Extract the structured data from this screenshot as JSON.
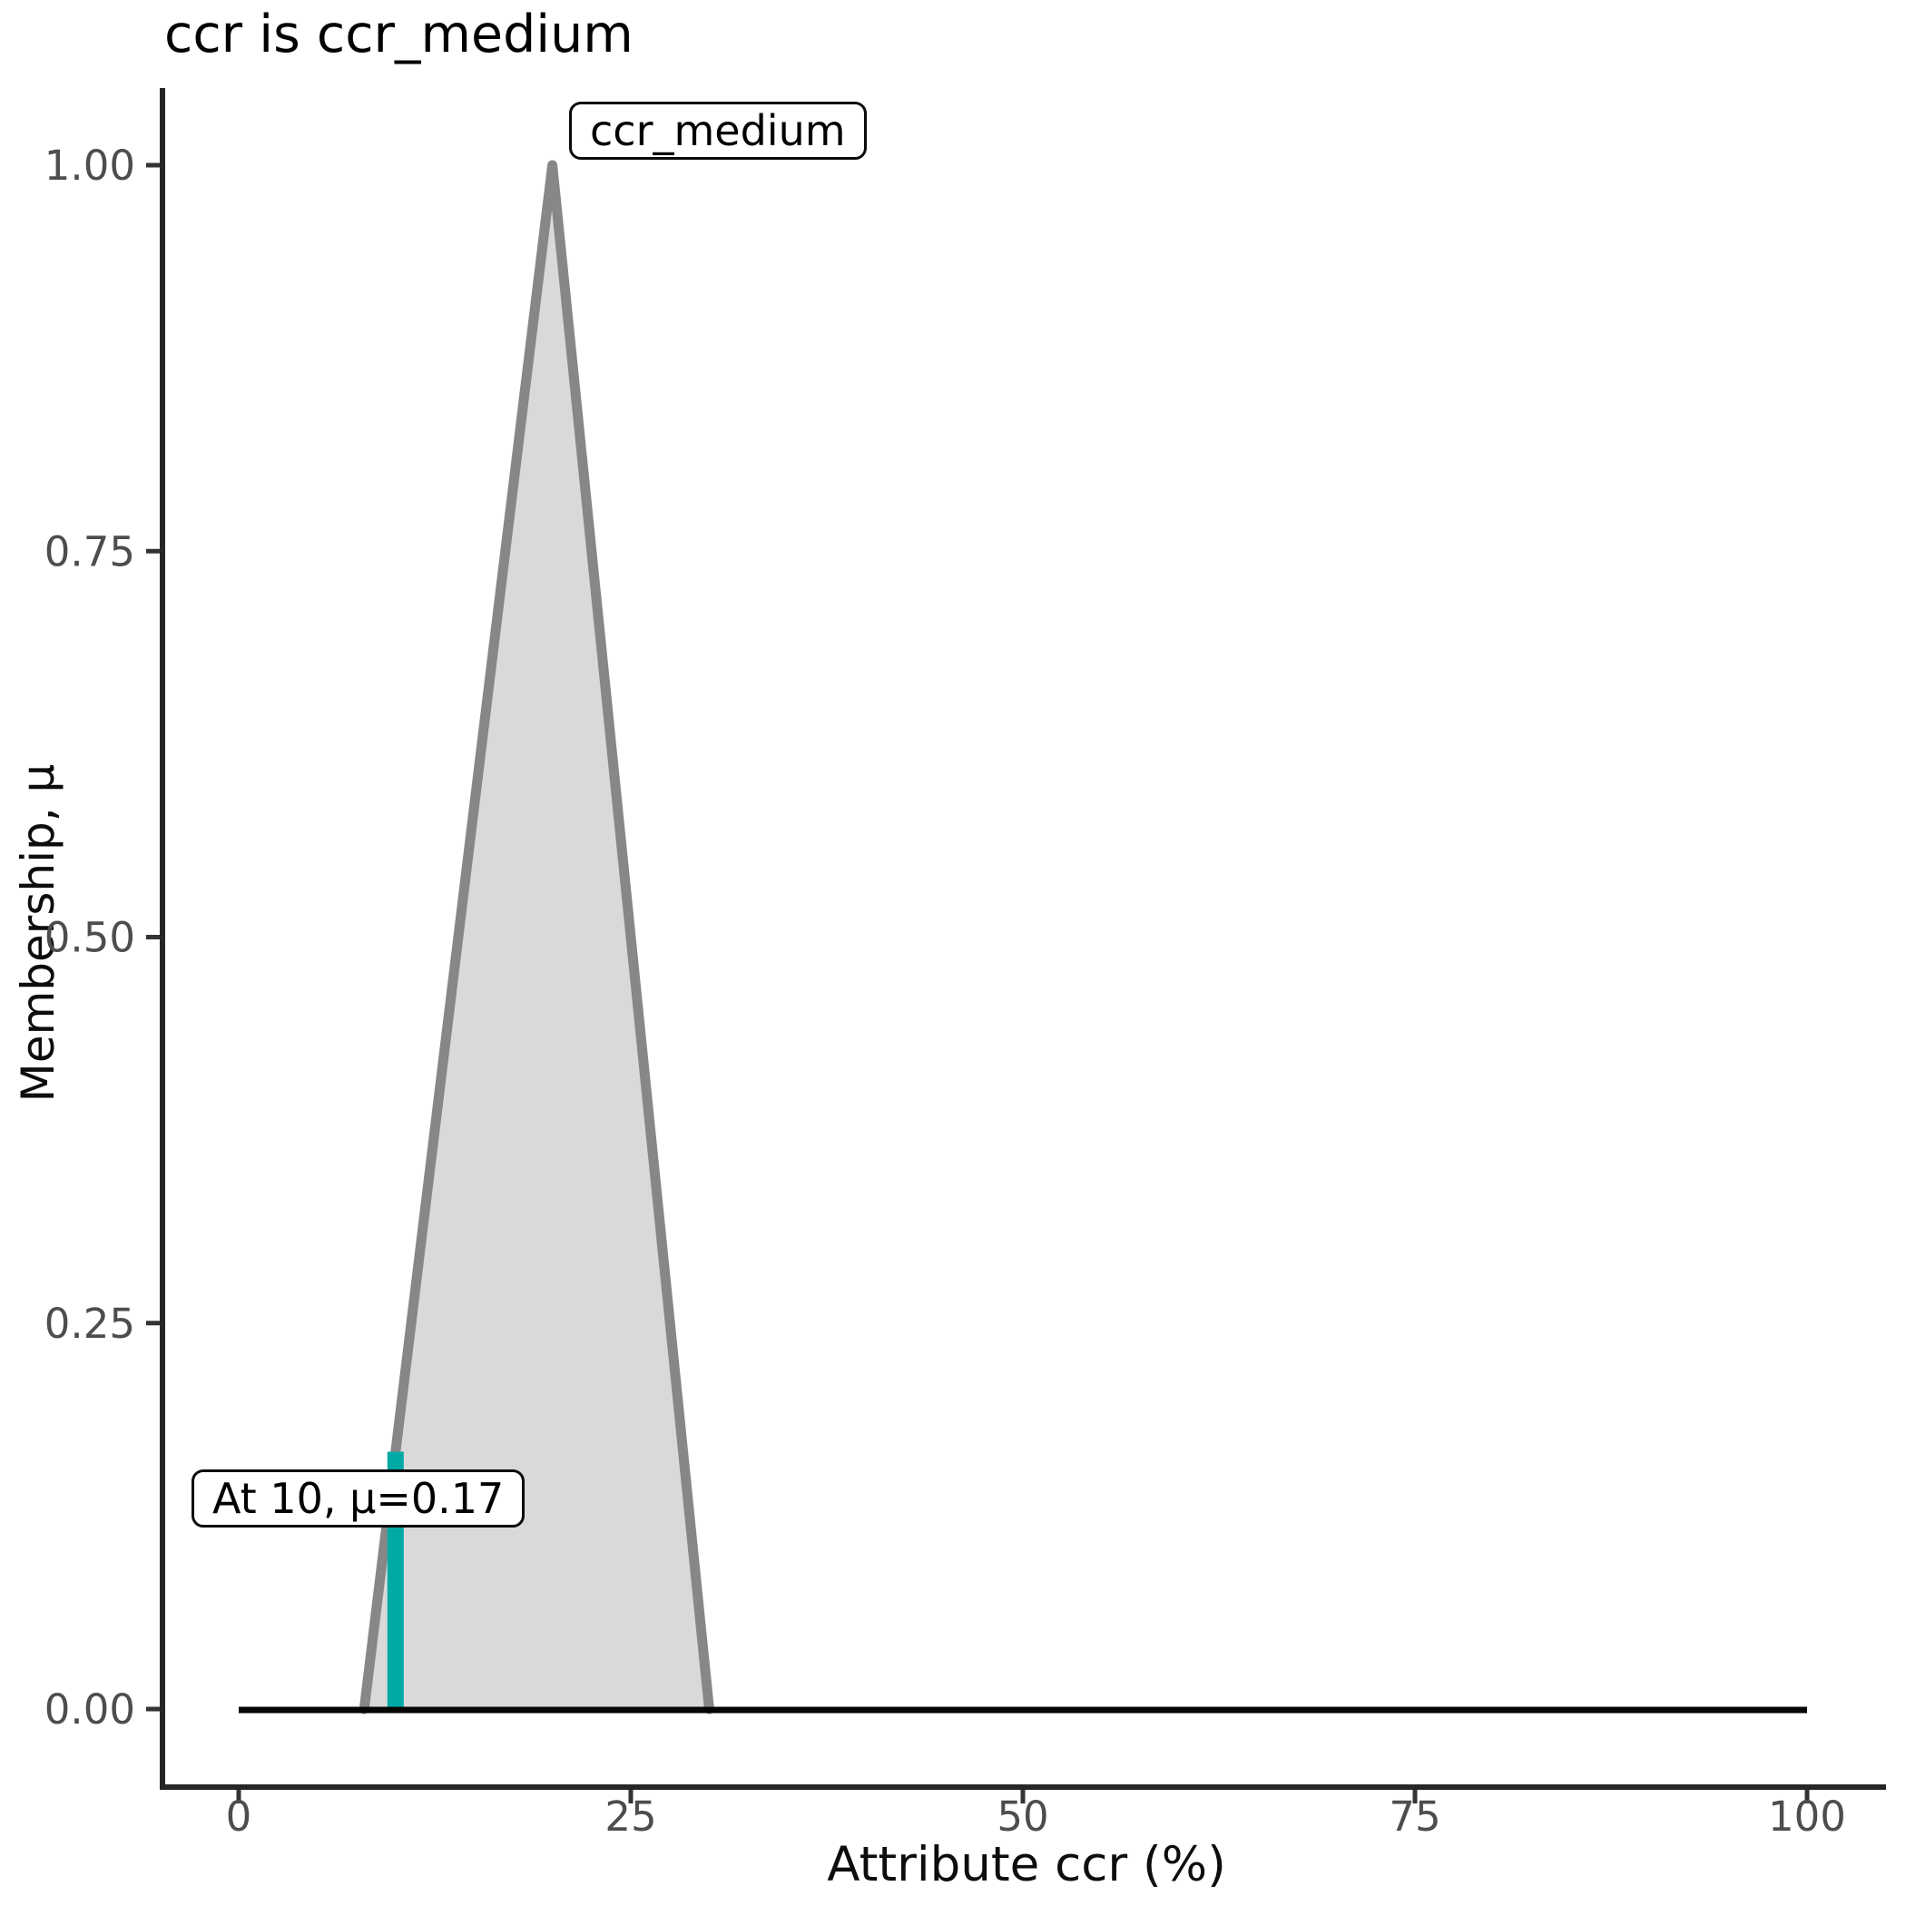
{
  "chart_data": {
    "type": "area",
    "title": "ccr is ccr_medium",
    "xlabel": "Attribute ccr (%)",
    "ylabel": "Membership, μ",
    "xlim": [
      0,
      100
    ],
    "ylim": [
      0,
      1
    ],
    "grid": false,
    "legend_position": "none",
    "x_ticks": [
      {
        "value": 0,
        "label": "0"
      },
      {
        "value": 25,
        "label": "25"
      },
      {
        "value": 50,
        "label": "50"
      },
      {
        "value": 75,
        "label": "75"
      },
      {
        "value": 100,
        "label": "100"
      }
    ],
    "y_ticks": [
      {
        "value": 0,
        "label": "0.00"
      },
      {
        "value": 0.25,
        "label": "0.25"
      },
      {
        "value": 0.5,
        "label": "0.50"
      },
      {
        "value": 0.75,
        "label": "0.75"
      },
      {
        "value": 1,
        "label": "1.00"
      }
    ],
    "membership_function": {
      "name": "ccr_medium",
      "shape": "triangle",
      "points": [
        [
          8,
          0
        ],
        [
          20,
          1
        ],
        [
          30,
          0
        ]
      ],
      "fill_color": "#d9d9d9",
      "line_color": "#878787"
    },
    "baseline": {
      "x_start": 0,
      "x_end": 100,
      "y": 0,
      "color": "#050505"
    },
    "indicator": {
      "x": 10,
      "mu": 0.17,
      "label": "At 10, μ=0.17",
      "color": "#00a9a4"
    },
    "peak_label": "ccr_medium",
    "colors": {
      "spine": "#262626",
      "tick_mark": "#333333",
      "tick_label": "#4d4d4d"
    }
  }
}
